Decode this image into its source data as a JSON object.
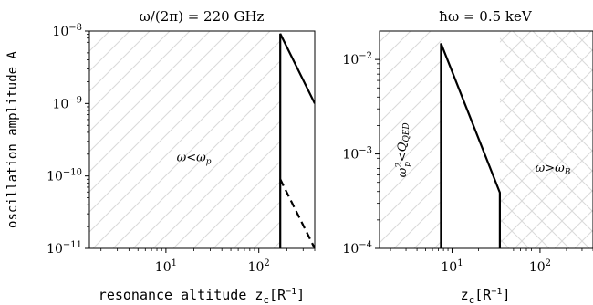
{
  "chart_data": [
    {
      "type": "line",
      "title": "ω/(2π) = 220 GHz",
      "xlabel_main": "resonance altitude z",
      "xlabel_sub": "c",
      "xlabel_unit": "[R",
      "xlabel_unit_exp": "−1",
      "xlabel_unit_close": "]",
      "ylabel": "oscillation amplitude A",
      "xscale": "log",
      "yscale": "log",
      "xlim": [
        1.5,
        400
      ],
      "ylim": [
        1e-11,
        1e-08
      ],
      "x_ticks": [
        {
          "value": 10,
          "base": "10",
          "exp": "1"
        },
        {
          "value": 100,
          "base": "10",
          "exp": "2"
        }
      ],
      "y_ticks": [
        {
          "value": 1e-08,
          "base": "10",
          "exp": "−8"
        },
        {
          "value": 1e-09,
          "base": "10",
          "exp": "−9"
        },
        {
          "value": 1e-10,
          "base": "10",
          "exp": "−10"
        },
        {
          "value": 1e-11,
          "base": "10",
          "exp": "−11"
        }
      ],
      "regions": [
        {
          "name": "ω<ω_p",
          "x_from": 1.5,
          "x_to": 170,
          "hatch": "diagonal",
          "label": "ω<ω",
          "label_sub": "p",
          "label_at": [
            20,
            1.6e-10
          ]
        }
      ],
      "series": [
        {
          "style": "solid",
          "x": [
            170,
            170,
            400
          ],
          "y": [
            1e-11,
            9.2e-09,
            1e-09
          ]
        },
        {
          "style": "dashed",
          "x": [
            170,
            400
          ],
          "y": [
            9e-11,
            1e-11
          ]
        }
      ]
    },
    {
      "type": "line",
      "title": "ħω = 0.5 keV",
      "xlabel_main": "z",
      "xlabel_sub": "c",
      "xlabel_unit": "[R",
      "xlabel_unit_exp": "−1",
      "xlabel_unit_close": "]",
      "ylabel": "",
      "xscale": "log",
      "yscale": "log",
      "xlim": [
        1.5,
        400
      ],
      "ylim": [
        0.0001,
        0.02
      ],
      "x_ticks": [
        {
          "value": 10,
          "base": "10",
          "exp": "1"
        },
        {
          "value": 100,
          "base": "10",
          "exp": "2"
        }
      ],
      "y_ticks": [
        {
          "value": 0.01,
          "base": "10",
          "exp": "−2"
        },
        {
          "value": 0.001,
          "base": "10",
          "exp": "−3"
        },
        {
          "value": 0.0001,
          "base": "10",
          "exp": "−4"
        }
      ],
      "regions": [
        {
          "name": "ω_p^2<Q_QED",
          "x_from": 1.5,
          "x_to": 7.5,
          "hatch": "diagonal",
          "label": "ω",
          "label_sub": "p",
          "label_sup": "2",
          "label_rest": "<Q",
          "label_rest_sub": "QED",
          "label_at": [
            3.0,
            0.0011
          ],
          "rotate": -90
        },
        {
          "name": "ω>ω_B",
          "x_from": 35,
          "x_to": 400,
          "hatch": "cross",
          "label": "ω>ω",
          "label_sub": "B",
          "label_at": [
            140,
            0.00065
          ]
        }
      ],
      "series": [
        {
          "style": "solid",
          "x": [
            7.5,
            7.5,
            35,
            35
          ],
          "y": [
            0.0001,
            0.0148,
            0.00039,
            0.0001
          ]
        }
      ]
    }
  ]
}
